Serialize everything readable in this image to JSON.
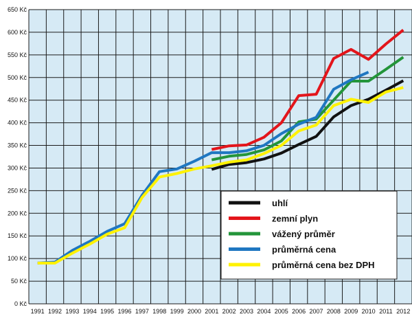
{
  "chart_data": {
    "type": "line",
    "title": "",
    "xlabel": "",
    "ylabel": "",
    "ylim": [
      0,
      650
    ],
    "grid": true,
    "legend_position": "bottom-right",
    "background_color": "#d6eaf5",
    "y_ticks": [
      "0 Kč",
      "50 Kč",
      "100 Kč",
      "150 Kč",
      "200 Kč",
      "250 Kč",
      "300 Kč",
      "350 Kč",
      "400 Kč",
      "450 Kč",
      "500 Kč",
      "550 Kč",
      "600 Kč",
      "650 Kč"
    ],
    "x": [
      "1991",
      "1992",
      "1993",
      "1994",
      "1995",
      "1996",
      "1997",
      "1998",
      "1999",
      "2000",
      "2001",
      "2002",
      "2003",
      "2004",
      "2005",
      "2006",
      "2007",
      "2008",
      "2009",
      "2010",
      "2011",
      "2012"
    ],
    "series": [
      {
        "name": "uhlí",
        "color": "#111111",
        "values": [
          null,
          null,
          null,
          null,
          null,
          null,
          null,
          null,
          null,
          null,
          297,
          308,
          312,
          320,
          333,
          352,
          370,
          413,
          438,
          452,
          472,
          493
        ]
      },
      {
        "name": "zemní plyn",
        "color": "#e3151b",
        "values": [
          null,
          null,
          null,
          null,
          null,
          null,
          null,
          null,
          null,
          null,
          341,
          349,
          351,
          368,
          400,
          460,
          463,
          542,
          562,
          540,
          574,
          605
        ]
      },
      {
        "name": "vážený průměr",
        "color": "#23953a",
        "values": [
          null,
          null,
          null,
          null,
          null,
          null,
          null,
          null,
          null,
          null,
          318,
          326,
          330,
          340,
          360,
          402,
          408,
          450,
          492,
          492,
          518,
          545
        ]
      },
      {
        "name": "průměrná cena",
        "color": "#1f77c1",
        "values": [
          90,
          92,
          118,
          138,
          160,
          177,
          240,
          292,
          298,
          315,
          334,
          334,
          338,
          350,
          376,
          397,
          412,
          474,
          495,
          512,
          null,
          null
        ]
      },
      {
        "name": "průměrná cena bez DPH",
        "color": "#fff200",
        "values": [
          90,
          90,
          112,
          132,
          154,
          168,
          235,
          280,
          288,
          298,
          305,
          313,
          318,
          332,
          350,
          382,
          395,
          438,
          452,
          445,
          468,
          478
        ]
      }
    ]
  }
}
